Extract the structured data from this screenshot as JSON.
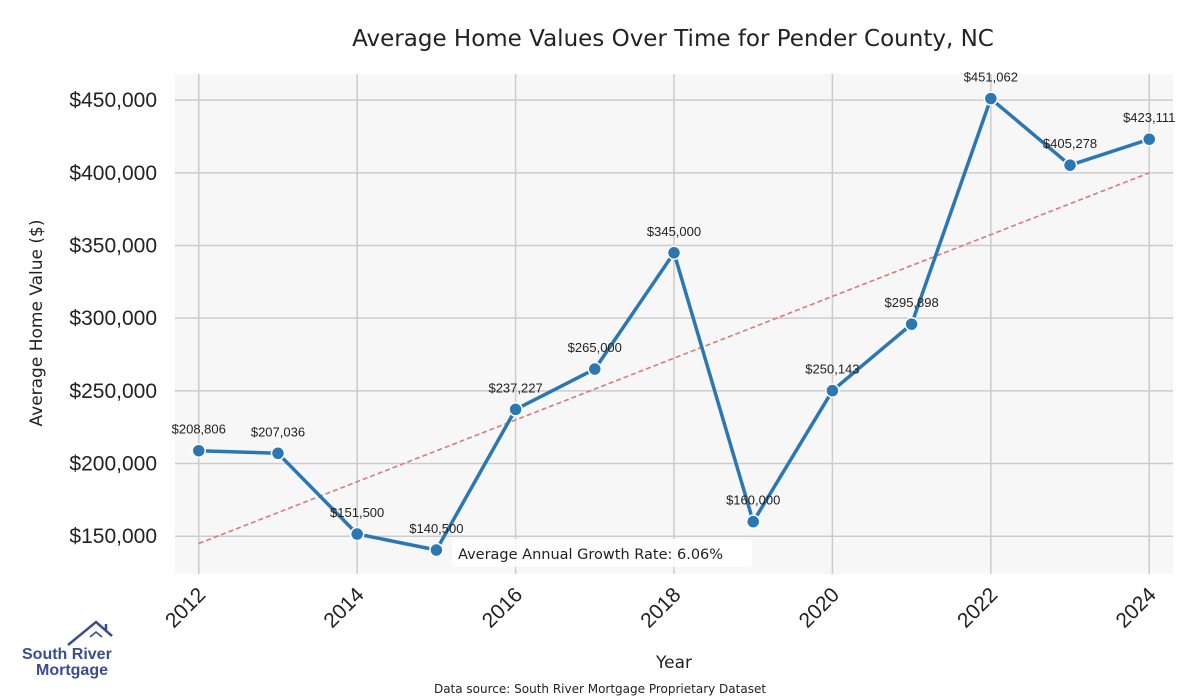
{
  "chart_data": {
    "type": "line",
    "title": "Average Home Values Over Time for Pender County, NC",
    "xlabel": "Year",
    "ylabel": "Average Home Value ($)",
    "x": [
      2012,
      2013,
      2014,
      2015,
      2016,
      2017,
      2018,
      2019,
      2020,
      2021,
      2022,
      2023,
      2024
    ],
    "series": [
      {
        "values": [
          208806,
          207036,
          151500,
          140500,
          237227,
          265000,
          345000,
          160000,
          250143,
          295898,
          451062,
          405278,
          423111
        ],
        "labels": [
          "$208,806",
          "$207,036",
          "$151,500",
          "$140,500",
          "$237,227",
          "$265,000",
          "$345,000",
          "$160,000",
          "$250,143",
          "$295,898",
          "$451,062",
          "$405,278",
          "$423,111"
        ],
        "color": "#2a77b4"
      }
    ],
    "trendline": {
      "start": [
        2012,
        145000
      ],
      "end": [
        2024,
        400000
      ],
      "color": "#d77b7b",
      "style": "dashed"
    },
    "xticks": [
      2012,
      2014,
      2016,
      2018,
      2020,
      2022,
      2024
    ],
    "xtick_labels": [
      "2012",
      "2014",
      "2016",
      "2018",
      "2020",
      "2022",
      "2024"
    ],
    "yticks": [
      150000,
      200000,
      250000,
      300000,
      350000,
      400000,
      450000
    ],
    "ytick_labels": [
      "$150,000",
      "$200,000",
      "$250,000",
      "$300,000",
      "$350,000",
      "$400,000",
      "$450,000"
    ],
    "xlim": [
      2011.7,
      2024.3
    ],
    "ylim": [
      124000,
      468000
    ],
    "grid": true,
    "annotation": "Average Annual Growth Rate: 6.06%",
    "source": "Data source: South River Mortgage Proprietary Dataset",
    "plot_background": "#f7f7f7",
    "grid_color": "#cccccc"
  },
  "logo": {
    "line1": "South River",
    "line2": "Mortgage",
    "color": "#3a4d8f"
  }
}
